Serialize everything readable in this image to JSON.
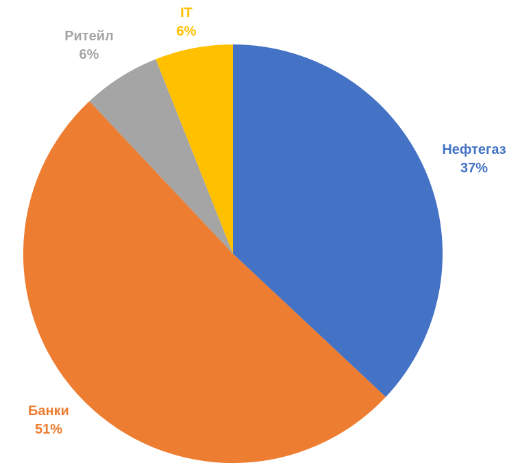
{
  "chart_data": {
    "type": "pie",
    "title": "",
    "categories": [
      "Нефтегаз",
      "Банки",
      "Ритейл",
      "IT"
    ],
    "values": [
      37,
      51,
      6,
      6
    ],
    "slices": [
      {
        "label": "Нефтегаз",
        "value": 37,
        "pct_text": "37%",
        "color": "#4472C4"
      },
      {
        "label": "Банки",
        "value": 51,
        "pct_text": "51%",
        "color": "#ED7D31"
      },
      {
        "label": "Ритейл",
        "value": 6,
        "pct_text": "6%",
        "color": "#A5A5A5"
      },
      {
        "label": "IT",
        "value": 6,
        "pct_text": "6%",
        "color": "#FFC000"
      }
    ],
    "start_angle_deg": 0,
    "direction": "clockwise",
    "legend_position": "none",
    "data_label_style": "category name and percent, outside slice, colored to match slice"
  },
  "layout_meta": {
    "background": "#FFFFFF"
  }
}
